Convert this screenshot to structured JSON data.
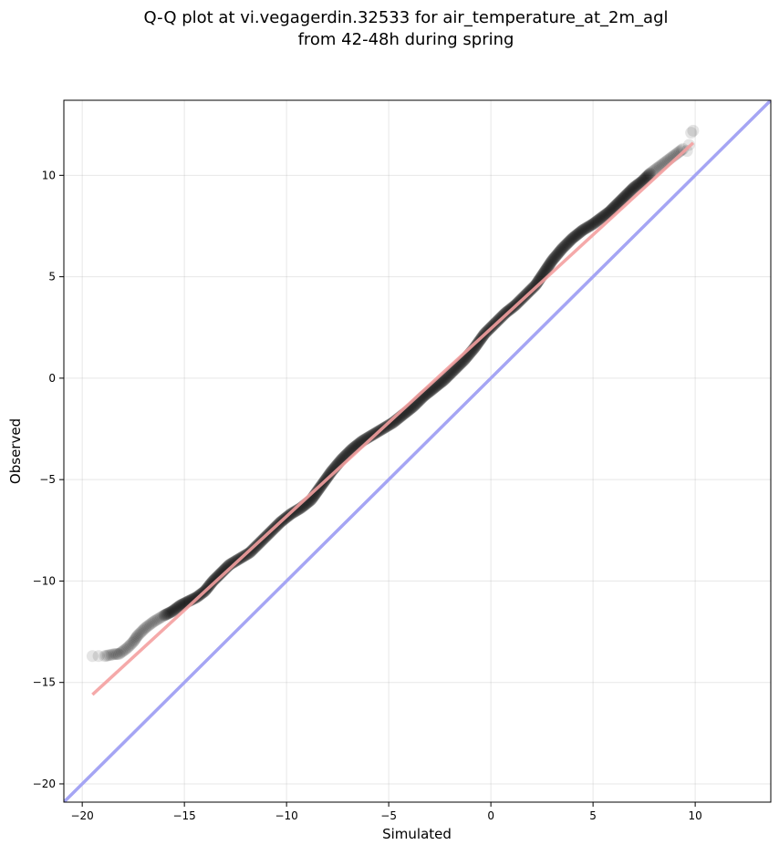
{
  "chart_data": {
    "type": "scatter",
    "title_line1": "Q-Q plot at vi.vegagerdin.32533 for air_temperature_at_2m_agl",
    "title_line2": "from 42-48h during spring",
    "xlabel": "Simulated",
    "ylabel": "Observed",
    "xlim": [
      -20.9,
      13.7
    ],
    "ylim": [
      -20.9,
      13.7
    ],
    "xticks": [
      -20,
      -15,
      -10,
      -5,
      0,
      5,
      10
    ],
    "yticks": [
      -20,
      -15,
      -10,
      -5,
      0,
      5,
      10
    ],
    "xtick_labels": [
      "−20",
      "−15",
      "−10",
      "−5",
      "0",
      "5",
      "10"
    ],
    "ytick_labels": [
      "−20",
      "−15",
      "−10",
      "−5",
      "0",
      "5",
      "10"
    ],
    "grid": true,
    "series": [
      {
        "kind": "quantile-points",
        "color": "#000000",
        "opacity": 0.1,
        "points": [
          [
            -19.5,
            -13.7
          ],
          [
            -19.2,
            -13.7
          ],
          [
            -18.9,
            -13.7
          ],
          [
            -18.4,
            -13.6
          ],
          [
            -18.2,
            -13.6
          ],
          [
            -17.8,
            -13.3
          ],
          [
            -17.5,
            -13.0
          ],
          [
            -17.3,
            -12.7
          ],
          [
            -16.9,
            -12.3
          ],
          [
            -16.5,
            -12.0
          ],
          [
            -16.0,
            -11.7
          ],
          [
            -15.6,
            -11.5
          ],
          [
            -15.2,
            -11.2
          ],
          [
            -14.8,
            -11.0
          ],
          [
            -14.4,
            -10.8
          ],
          [
            -14.0,
            -10.5
          ],
          [
            -13.6,
            -10.0
          ],
          [
            -13.2,
            -9.6
          ],
          [
            -12.8,
            -9.2
          ],
          [
            -12.3,
            -8.9
          ],
          [
            -11.8,
            -8.6
          ],
          [
            -11.3,
            -8.1
          ],
          [
            -10.8,
            -7.6
          ],
          [
            -10.3,
            -7.1
          ],
          [
            -9.8,
            -6.7
          ],
          [
            -9.3,
            -6.4
          ],
          [
            -8.8,
            -6.0
          ],
          [
            -8.3,
            -5.3
          ],
          [
            -7.8,
            -4.6
          ],
          [
            -7.3,
            -4.0
          ],
          [
            -6.8,
            -3.5
          ],
          [
            -6.3,
            -3.1
          ],
          [
            -5.8,
            -2.8
          ],
          [
            -5.3,
            -2.5
          ],
          [
            -4.8,
            -2.2
          ],
          [
            -4.3,
            -1.8
          ],
          [
            -3.8,
            -1.4
          ],
          [
            -3.3,
            -0.9
          ],
          [
            -2.8,
            -0.5
          ],
          [
            -2.3,
            -0.1
          ],
          [
            -1.8,
            0.4
          ],
          [
            -1.3,
            0.9
          ],
          [
            -0.8,
            1.5
          ],
          [
            -0.3,
            2.2
          ],
          [
            0.2,
            2.7
          ],
          [
            0.7,
            3.2
          ],
          [
            1.2,
            3.6
          ],
          [
            1.7,
            4.1
          ],
          [
            2.2,
            4.6
          ],
          [
            2.6,
            5.2
          ],
          [
            3.0,
            5.8
          ],
          [
            3.5,
            6.4
          ],
          [
            4.0,
            6.9
          ],
          [
            4.5,
            7.3
          ],
          [
            5.0,
            7.6
          ],
          [
            5.4,
            7.9
          ],
          [
            5.8,
            8.2
          ],
          [
            6.2,
            8.6
          ],
          [
            6.6,
            9.0
          ],
          [
            7.0,
            9.4
          ],
          [
            7.4,
            9.7
          ],
          [
            7.8,
            10.1
          ],
          [
            8.2,
            10.4
          ],
          [
            8.6,
            10.7
          ],
          [
            9.0,
            11.0
          ],
          [
            9.4,
            11.3
          ],
          [
            9.7,
            11.5
          ],
          [
            9.6,
            11.2
          ],
          [
            9.8,
            12.1
          ],
          [
            9.9,
            12.2
          ]
        ]
      },
      {
        "kind": "fit-line",
        "color": "#f4a0a0",
        "points": [
          [
            -19.5,
            -15.6
          ],
          [
            9.9,
            11.6
          ]
        ]
      },
      {
        "kind": "identity-line",
        "color": "#a5a5f4",
        "points": [
          [
            -20.9,
            -20.9
          ],
          [
            13.7,
            13.7
          ]
        ]
      }
    ]
  }
}
